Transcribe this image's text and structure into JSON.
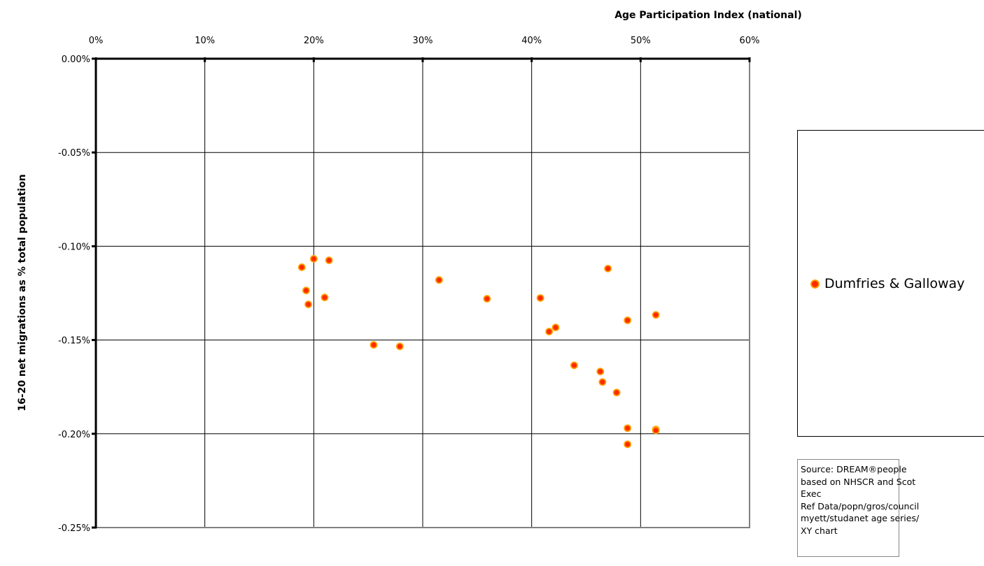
{
  "chart_data": {
    "type": "scatter",
    "x_title": "Age Participation Index (national)",
    "y_title": "16-20 net migrations as % total population",
    "x_ticks": [
      "0%",
      "10%",
      "20%",
      "30%",
      "40%",
      "50%",
      "60%"
    ],
    "y_ticks": [
      "0.00%",
      "-0.05%",
      "-0.10%",
      "-0.15%",
      "-0.20%",
      "-0.25%"
    ],
    "xlim": [
      0,
      0.6
    ],
    "ylim": [
      -0.0025,
      0
    ],
    "x_axis_position": "top",
    "grid": true,
    "legend_position": "right",
    "series": [
      {
        "name": "Dumfries & Galloway",
        "color": "#ff2a00",
        "points": [
          {
            "x": 0.189,
            "y": -0.001112
          },
          {
            "x": 0.2,
            "y": -0.001067
          },
          {
            "x": 0.214,
            "y": -0.001075
          },
          {
            "x": 0.193,
            "y": -0.001236
          },
          {
            "x": 0.195,
            "y": -0.00131
          },
          {
            "x": 0.21,
            "y": -0.001273
          },
          {
            "x": 0.255,
            "y": -0.001526
          },
          {
            "x": 0.279,
            "y": -0.001534
          },
          {
            "x": 0.315,
            "y": -0.00118
          },
          {
            "x": 0.359,
            "y": -0.00128
          },
          {
            "x": 0.408,
            "y": -0.001276
          },
          {
            "x": 0.416,
            "y": -0.001455
          },
          {
            "x": 0.422,
            "y": -0.001433
          },
          {
            "x": 0.439,
            "y": -0.001635
          },
          {
            "x": 0.463,
            "y": -0.001668
          },
          {
            "x": 0.465,
            "y": -0.001724
          },
          {
            "x": 0.47,
            "y": -0.001119
          },
          {
            "x": 0.478,
            "y": -0.00178
          },
          {
            "x": 0.488,
            "y": -0.001395
          },
          {
            "x": 0.488,
            "y": -0.00197
          },
          {
            "x": 0.488,
            "y": -0.002056
          },
          {
            "x": 0.514,
            "y": -0.001366
          },
          {
            "x": 0.514,
            "y": -0.001977
          },
          {
            "x": 0.514,
            "y": -0.001982
          }
        ]
      }
    ]
  },
  "legend": {
    "label": "Dumfries & Galloway"
  },
  "source_note": {
    "lines": [
      "Source:  DREAM®people",
      "based on NHSCR and Scot",
      "Exec",
      "Ref Data/popn/gros/council",
      "myett/studanet age series/",
      "XY chart"
    ]
  }
}
